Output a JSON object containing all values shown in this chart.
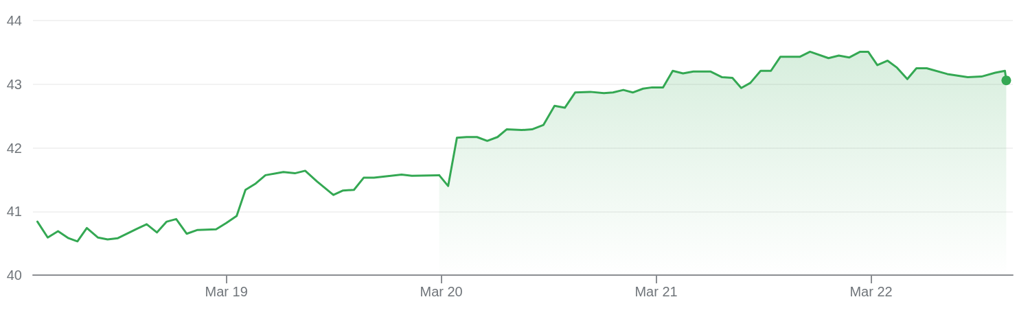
{
  "chart_data": {
    "type": "line",
    "series": [
      {
        "type": "line",
        "color": "#34a853",
        "x": [
          "--03-18T02:54",
          "--03-18T04:03",
          "--03-18T05:12",
          "--03-18T06:22",
          "--03-18T07:22",
          "--03-18T08:25",
          "--03-18T09:40",
          "--03-18T10:44",
          "--03-18T11:53",
          "--03-18T14:02",
          "--03-18T15:06",
          "--03-18T16:15",
          "--03-18T17:20",
          "--03-18T18:24",
          "--03-18T19:34",
          "--03-18T20:47",
          "--03-18T22:51",
          "--03-19T00:00",
          "--03-19T01:09",
          "--03-19T02:08",
          "--03-19T03:17",
          "--03-19T04:22",
          "--03-19T06:22",
          "--03-19T07:39",
          "--03-19T08:48",
          "--03-19T10:08",
          "--03-19T11:57",
          "--03-19T13:02",
          "--03-19T14:15",
          "--03-19T15:20",
          "--03-19T16:29",
          "--03-19T19:34",
          "--03-19T20:43",
          "--03-19T23:46"
        ],
        "values": [
          40.84,
          40.59,
          40.69,
          40.58,
          40.53,
          40.74,
          40.59,
          40.56,
          40.58,
          40.73,
          40.8,
          40.67,
          40.84,
          40.88,
          40.65,
          40.71,
          40.72,
          40.82,
          40.93,
          41.34,
          41.44,
          41.57,
          41.62,
          41.6,
          41.64,
          41.47,
          41.26,
          41.33,
          41.34,
          41.53,
          41.53,
          41.58,
          41.56,
          41.57
        ]
      },
      {
        "type": "area",
        "color": "#34a853",
        "x": [
          "--03-19T23:46",
          "--03-20T00:46",
          "--03-20T01:45",
          "--03-20T02:50",
          "--03-20T03:59",
          "--03-20T05:08",
          "--03-20T06:17",
          "--03-20T07:18",
          "--03-20T08:59",
          "--03-20T10:08",
          "--03-20T11:25",
          "--03-20T12:39",
          "--03-20T13:48",
          "--03-20T14:57",
          "--03-20T16:38",
          "--03-20T18:10",
          "--03-20T19:11",
          "--03-20T20:20",
          "--03-20T21:23",
          "--03-20T22:32",
          "--03-20T23:33",
          "--03-21T00:46",
          "--03-21T01:51",
          "--03-21T03:00",
          "--03-21T04:09",
          "--03-21T06:03",
          "--03-21T07:22",
          "--03-21T08:31",
          "--03-21T09:30",
          "--03-21T10:31",
          "--03-21T11:40",
          "--03-21T12:49",
          "--03-21T13:52",
          "--03-21T16:02",
          "--03-21T17:11",
          "--03-21T19:15",
          "--03-21T20:24",
          "--03-21T21:33",
          "--03-21T22:47",
          "--03-21T23:41",
          "--03-22T00:42",
          "--03-22T01:51",
          "--03-22T02:54",
          "--03-22T04:03",
          "--03-22T05:04",
          "--03-22T06:13",
          "--03-22T08:31",
          "--03-22T10:48",
          "--03-22T12:20",
          "--03-22T13:52",
          "--03-22T14:57",
          "--03-22T15:06"
        ],
        "values": [
          41.57,
          41.4,
          42.16,
          42.17,
          42.17,
          42.11,
          42.17,
          42.29,
          42.28,
          42.29,
          42.36,
          42.66,
          42.63,
          42.87,
          42.88,
          42.86,
          42.87,
          42.91,
          42.87,
          42.93,
          42.95,
          42.95,
          43.21,
          43.17,
          43.2,
          43.2,
          43.11,
          43.1,
          42.94,
          43.02,
          43.21,
          43.21,
          43.43,
          43.43,
          43.51,
          43.41,
          43.45,
          43.42,
          43.51,
          43.51,
          43.3,
          43.37,
          43.26,
          43.08,
          43.25,
          43.25,
          43.16,
          43.11,
          43.12,
          43.18,
          43.21,
          43.06
        ]
      }
    ],
    "xlim": [
      "--03-18T02:24",
      "--03-22T15:50"
    ],
    "xticks": [
      {
        "value": "--03-19",
        "label": "Mar 19"
      },
      {
        "value": "--03-20",
        "label": "Mar 20"
      },
      {
        "value": "--03-21",
        "label": "Mar 21"
      },
      {
        "value": "--03-22",
        "label": "Mar 22"
      }
    ],
    "ylim": [
      40,
      44
    ],
    "yticks": [
      40,
      41,
      42,
      43,
      44
    ],
    "grid": "y",
    "marker": "none",
    "line_style": "solid"
  }
}
